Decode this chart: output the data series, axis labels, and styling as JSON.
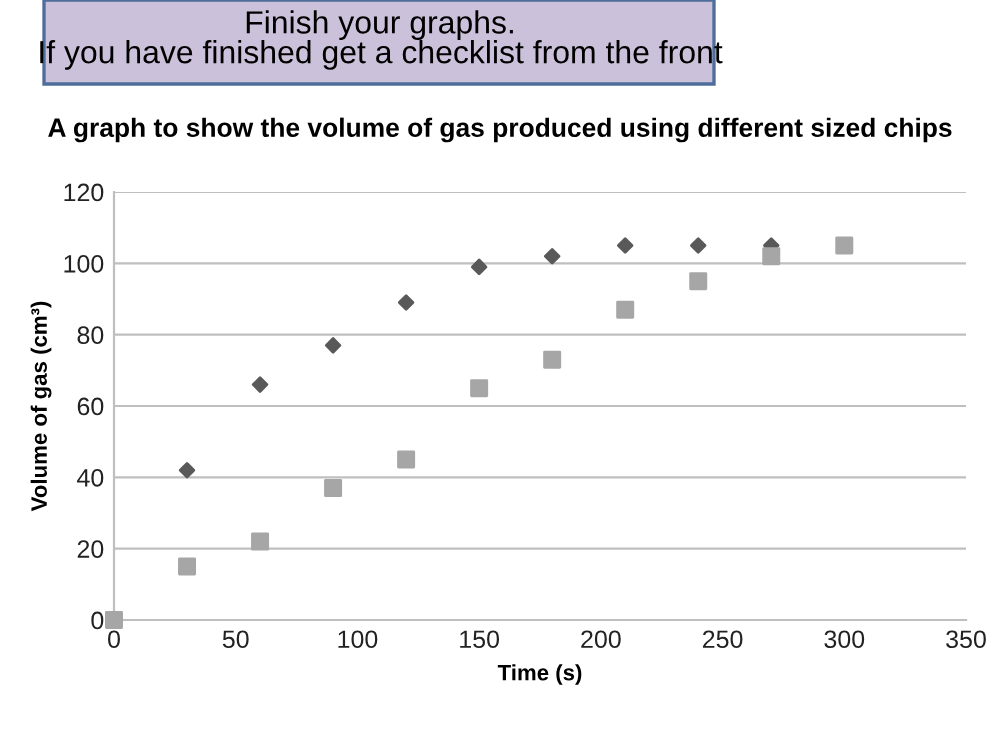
{
  "chart_data": {
    "type": "scatter",
    "title": "A graph to show the volume of gas produced using different sized chips",
    "xlabel": "Time (s)",
    "ylabel": "Volume of gas (cm³)",
    "annotations": [
      "Finish your graphs.\nIf you have finished get a checklist from the front"
    ],
    "series": [
      {
        "color": "#595959",
        "marker": "diamond",
        "x": [
          30,
          60,
          90,
          120,
          150,
          180,
          210,
          240,
          270
        ],
        "values": [
          42,
          66,
          77,
          89,
          99,
          102,
          105,
          105,
          105
        ]
      },
      {
        "color": "#a6a6a6",
        "marker": "square",
        "x": [
          0,
          30,
          60,
          90,
          120,
          150,
          180,
          210,
          240,
          270,
          300
        ],
        "values": [
          0,
          15,
          22,
          37,
          45,
          65,
          73,
          87,
          95,
          102,
          105
        ]
      }
    ],
    "xlim": [
      0,
      350
    ],
    "xticks": [
      0,
      50,
      100,
      150,
      200,
      250,
      300,
      350
    ],
    "ylim": [
      0,
      120
    ],
    "yticks": [
      0,
      20,
      40,
      60,
      80,
      100,
      120
    ],
    "grid": "y",
    "legend": false
  }
}
